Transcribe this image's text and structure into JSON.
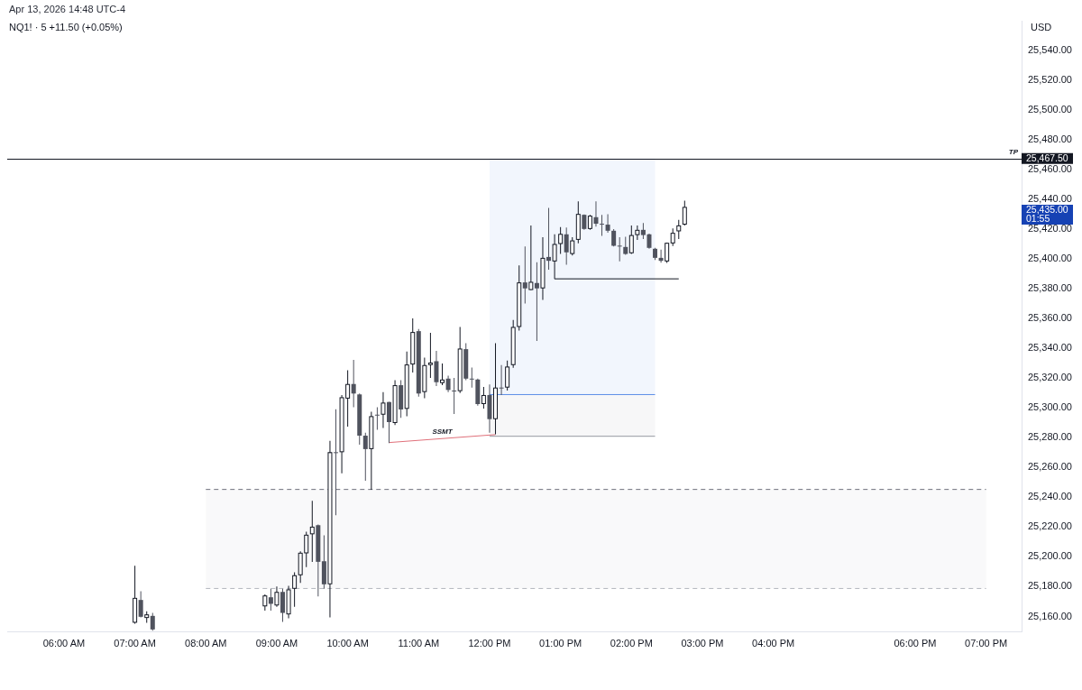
{
  "chart_data": {
    "type": "candlestick",
    "title": "NQ1! · 5 +11.50 (+0.05%)",
    "subtitle": "Apr 13, 2026 14:48 UTC-4",
    "ylabel": "USD",
    "x": [
      7,
      7.0833,
      7.1667,
      7.25,
      8.8333,
      8.9167,
      9,
      9.0833,
      9.1667,
      9.25,
      9.3333,
      9.4167,
      9.5,
      9.5833,
      9.6667,
      9.75,
      9.8333,
      9.9167,
      10,
      10.0833,
      10.1667,
      10.25,
      10.3333,
      10.4167,
      10.5,
      10.5833,
      10.6667,
      10.75,
      10.8333,
      10.9167,
      11,
      11.0833,
      11.1667,
      11.25,
      11.3333,
      11.4167,
      11.5,
      11.5833,
      11.6667,
      11.75,
      11.8333,
      11.9167,
      12,
      12.0833,
      12.1667,
      12.25,
      12.3333,
      12.4167,
      12.5,
      12.5833,
      12.6667,
      12.75,
      12.8333,
      12.9167,
      13,
      13.0833,
      13.1667,
      13.25,
      13.3333,
      13.4167,
      13.5,
      13.5833,
      13.6667,
      13.75,
      13.8333,
      13.9167,
      14,
      14.0833,
      14.1667,
      14.25,
      14.3333,
      14.4167,
      14.5,
      14.5833,
      14.6667,
      14.75
    ],
    "ohlc": [
      [
        25155.8,
        25194.1,
        25155.2,
        25172.5
      ],
      [
        25171.1,
        25176.9,
        25159.4,
        25159.8
      ],
      [
        25159.0,
        25163.4,
        25155.8,
        25161.4
      ],
      [
        25160.4,
        25162.4,
        25150.5,
        25151.3
      ],
      [
        25166.8,
        25174.8,
        25164.0,
        25174.1
      ],
      [
        25172.9,
        25178.6,
        25164.0,
        25168.5
      ],
      [
        25167.4,
        25180.1,
        25166.5,
        25176.5
      ],
      [
        25176.5,
        25178.6,
        25156.4,
        25162.4
      ],
      [
        25161.4,
        25180.6,
        25158.8,
        25178.2
      ],
      [
        25178.6,
        25189.7,
        25166.5,
        25187.7
      ],
      [
        25187.7,
        25203.8,
        25182.6,
        25202.8
      ],
      [
        25202.4,
        25216.9,
        25193.1,
        25214.9
      ],
      [
        25215.2,
        25237.6,
        25196.7,
        25220.3
      ],
      [
        25221.3,
        25221.8,
        25173.5,
        25196.7
      ],
      [
        25197.1,
        25214.5,
        25178.6,
        25181.6
      ],
      [
        25181.6,
        25278.0,
        25159.4,
        25270.3
      ],
      [
        25270.3,
        25299.2,
        25228.0,
        25270.3
      ],
      [
        25270.3,
        25308.7,
        25256.2,
        25307.2
      ],
      [
        25306.3,
        25325.4,
        25287.5,
        25316.1
      ],
      [
        25316.1,
        25332.3,
        25300.5,
        25309.7
      ],
      [
        25309.1,
        25309.7,
        25275.3,
        25281.4
      ],
      [
        25281.4,
        25283.4,
        25251.2,
        25272.4
      ],
      [
        25272.4,
        25297.4,
        25245.1,
        25294.5
      ],
      [
        25295.5,
        25300.5,
        25285.4,
        25295.5
      ],
      [
        25295.5,
        25310.7,
        25286.5,
        25303.6
      ],
      [
        25304.0,
        25304.1,
        25276.4,
        25290.5
      ],
      [
        25289.9,
        25318.7,
        25288.5,
        25315.3
      ],
      [
        25315.3,
        25318.7,
        25293.4,
        25299.0
      ],
      [
        25299.4,
        25337.9,
        25294.5,
        25329.2
      ],
      [
        25329.2,
        25360.1,
        25323.8,
        25351.0
      ],
      [
        25351.6,
        25353.0,
        25307.6,
        25309.7
      ],
      [
        25310.7,
        25333.8,
        25306.5,
        25328.8
      ],
      [
        25328.8,
        25350.4,
        25320.2,
        25330.5
      ],
      [
        25331.4,
        25338.3,
        25314.7,
        25317.3
      ],
      [
        25316.7,
        25329.8,
        25315.3,
        25319.1
      ],
      [
        25319.7,
        25321.7,
        25310.7,
        25312.1
      ],
      [
        25311.7,
        25320.2,
        25296.0,
        25311.7
      ],
      [
        25311.3,
        25354.4,
        25310.1,
        25339.9
      ],
      [
        25339.5,
        25343.5,
        25318.7,
        25319.7
      ],
      [
        25319.7,
        25327.2,
        25313.7,
        25319.7
      ],
      [
        25319.1,
        25319.7,
        25301.6,
        25302.6
      ],
      [
        25302.6,
        25314.1,
        25299.6,
        25308.7
      ],
      [
        25308.7,
        25315.8,
        25283.4,
        25292.5
      ],
      [
        25292.5,
        25343.5,
        25282.4,
        25313.7
      ],
      [
        25313.7,
        25328.8,
        25308.7,
        25313.7
      ],
      [
        25313.7,
        25331.8,
        25311.7,
        25327.8
      ],
      [
        25328.8,
        25359.1,
        25327.0,
        25354.4
      ],
      [
        25354.4,
        25395.8,
        25352.0,
        25384.3
      ],
      [
        25384.3,
        25408.5,
        25370.2,
        25380.3
      ],
      [
        25379.2,
        25422.6,
        25379.2,
        25384.7
      ],
      [
        25383.9,
        25397.8,
        25345.0,
        25380.3
      ],
      [
        25380.3,
        25414.6,
        25372.6,
        25400.8
      ],
      [
        25401.4,
        25434.3,
        25392.8,
        25398.8
      ],
      [
        25398.4,
        25416.6,
        25386.7,
        25410.1
      ],
      [
        25410.1,
        25421.5,
        25403.4,
        25416.9
      ],
      [
        25416.6,
        25421.1,
        25396.2,
        25404.5
      ],
      [
        25403.4,
        25414.6,
        25402.4,
        25412.5
      ],
      [
        25412.9,
        25438.8,
        25410.5,
        25430.3
      ],
      [
        25429.7,
        25430.0,
        25419.6,
        25420.2
      ],
      [
        25420.2,
        25429.7,
        25419.6,
        25429.1
      ],
      [
        25428.1,
        25438.8,
        25421.7,
        25423.7
      ],
      [
        25423.7,
        25429.7,
        25415.5,
        25423.7
      ],
      [
        25423.1,
        25430.1,
        25417.7,
        25419.0
      ],
      [
        25419.0,
        25420.1,
        25408.5,
        25408.9
      ],
      [
        25409.0,
        25414.6,
        25398.4,
        25409.0
      ],
      [
        25408.1,
        25415.0,
        25402.9,
        25403.4
      ],
      [
        25403.9,
        25422.6,
        25403.4,
        25416.1
      ],
      [
        25416.1,
        25422.6,
        25412.9,
        25419.6
      ],
      [
        25419.6,
        25424.2,
        25413.5,
        25416.1
      ],
      [
        25416.6,
        25417.0,
        25406.9,
        25407.5
      ],
      [
        25406.9,
        25407.5,
        25399.4,
        25400.8
      ],
      [
        25400.8,
        25406.3,
        25397.5,
        25398.8
      ],
      [
        25398.4,
        25411.0,
        25397.4,
        25410.9
      ],
      [
        25410.5,
        25420.6,
        25408.7,
        25417.6
      ],
      [
        25418.6,
        25426.3,
        25413.5,
        25422.6
      ],
      [
        25423.1,
        25439.2,
        25422.6,
        25435.0
      ]
    ],
    "series": [
      {
        "type": "line",
        "color": "#6f727d",
        "line_style": "dashed",
        "x": [
          8,
          19
        ],
        "values": [
          25245.3,
          25245.3
        ]
      },
      {
        "type": "line",
        "color": "#b4b7bf",
        "line_style": "dashed",
        "x": [
          8,
          19
        ],
        "values": [
          25178.8,
          25178.8
        ],
        "lower": [
          25178.8,
          25178.8
        ],
        "upper": [
          25245.3,
          25245.3
        ]
      },
      {
        "type": "line",
        "color": "#5b8ee6",
        "x": [
          12,
          14.3333
        ],
        "values": [
          25309,
          25309
        ],
        "lower": [
          25309,
          25309
        ],
        "upper": [
          25467.5,
          25467.5
        ]
      },
      {
        "type": "line",
        "color": "#9598a1",
        "x": [
          12,
          14.3333
        ],
        "values": [
          25281,
          25281
        ],
        "lower": [
          25281,
          25281
        ],
        "upper": [
          25309,
          25309
        ]
      },
      {
        "type": "line",
        "color": "#e0707a",
        "x": [
          10.5833,
          12.0833
        ],
        "values": [
          25276.8,
          25282.1
        ]
      },
      {
        "type": "line",
        "color": "#131722",
        "x": [
          12.9167,
          14.6667
        ],
        "values": [
          25386.7,
          25386.7
        ]
      }
    ],
    "ref_lines": [
      {
        "axis": "y",
        "value": 25467.5,
        "label": "TP",
        "color": "#131722"
      }
    ],
    "annotations": [
      {
        "text": "SSMT",
        "x": 11.3333,
        "y": 25279.5
      },
      {
        "text": "25,467.50",
        "x": 19.5,
        "y": 25467.5
      },
      "25,435.00\n01:55"
    ],
    "xlim": [
      5.2,
      19.5
    ],
    "xticks": [
      {
        "value": 6,
        "label": "06:00 AM"
      },
      {
        "value": 7,
        "label": "07:00 AM"
      },
      {
        "value": 8,
        "label": "08:00 AM"
      },
      {
        "value": 9,
        "label": "09:00 AM"
      },
      {
        "value": 10,
        "label": "10:00 AM"
      },
      {
        "value": 11,
        "label": "11:00 AM"
      },
      {
        "value": 12,
        "label": "12:00 PM"
      },
      {
        "value": 13,
        "label": "01:00 PM"
      },
      {
        "value": 14,
        "label": "02:00 PM"
      },
      {
        "value": 15,
        "label": "03:00 PM"
      },
      {
        "value": 16,
        "label": "04:00 PM"
      },
      {
        "value": 18,
        "label": "06:00 PM"
      },
      {
        "value": 19,
        "label": "07:00 PM"
      }
    ],
    "ylim": [
      25150,
      25560
    ],
    "yticks": [
      {
        "value": 25160,
        "label": "25,160.00"
      },
      {
        "value": 25180,
        "label": "25,180.00"
      },
      {
        "value": 25200,
        "label": "25,200.00"
      },
      {
        "value": 25220,
        "label": "25,220.00"
      },
      {
        "value": 25240,
        "label": "25,240.00"
      },
      {
        "value": 25260,
        "label": "25,260.00"
      },
      {
        "value": 25280,
        "label": "25,280.00"
      },
      {
        "value": 25300,
        "label": "25,300.00"
      },
      {
        "value": 25320,
        "label": "25,320.00"
      },
      {
        "value": 25340,
        "label": "25,340.00"
      },
      {
        "value": 25360,
        "label": "25,360.00"
      },
      {
        "value": 25380,
        "label": "25,380.00"
      },
      {
        "value": 25400,
        "label": "25,400.00"
      },
      {
        "value": 25420,
        "label": "25,420.00"
      },
      {
        "value": 25440,
        "label": "25,440.00"
      },
      {
        "value": 25460,
        "label": "25,460.00"
      },
      {
        "value": 25480,
        "label": "25,480.00"
      },
      {
        "value": 25500,
        "label": "25,500.00"
      },
      {
        "value": 25520,
        "label": "25,520.00"
      },
      {
        "value": 25540,
        "label": "25,540.00"
      }
    ]
  }
}
